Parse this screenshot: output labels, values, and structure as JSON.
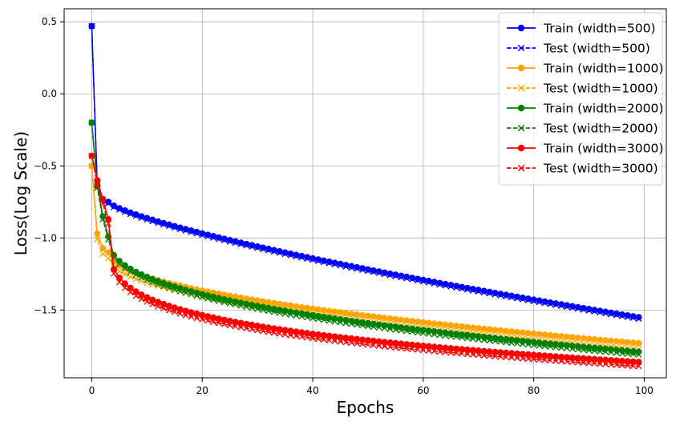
{
  "chart_data": {
    "type": "line",
    "title": "",
    "xlabel": "Epochs",
    "ylabel": "Loss(Log Scale)",
    "xlim": [
      -5,
      104
    ],
    "ylim": [
      -1.97,
      0.59
    ],
    "xticks": [
      0,
      20,
      40,
      60,
      80,
      100
    ],
    "xtick_labels": [
      "0",
      "20",
      "40",
      "60",
      "80",
      "100"
    ],
    "yticks": [
      0.5,
      0.0,
      -0.5,
      -1.0,
      -1.5
    ],
    "ytick_labels": [
      "0.5",
      "0.0",
      "−0.5",
      "−1.0",
      "−1.5"
    ],
    "grid": true,
    "legend_position": "upper-right",
    "epochs": {
      "start": 0,
      "end": 99,
      "step": 1
    },
    "series_params": [
      {
        "width": 500,
        "color": "#0000ff",
        "initial": [
          0.47,
          -0.64,
          -0.73
        ],
        "start": -0.75,
        "end": -1.55,
        "shape": 0.75,
        "test_offset": -0.01
      },
      {
        "width": 1000,
        "color": "#ffa500",
        "initial": [
          -0.5,
          -0.97,
          -1.07
        ],
        "start": -1.1,
        "end": -1.73,
        "shape": 0.5,
        "test_offset": -0.04
      },
      {
        "width": 2000,
        "color": "#008000",
        "initial": [
          -0.2,
          -0.63,
          -0.85
        ],
        "start": -0.99,
        "end": -1.79,
        "shape": 0.4,
        "test_offset": -0.02
      },
      {
        "width": 3000,
        "color": "#ff0000",
        "initial": [
          -0.43,
          -0.6,
          -0.73
        ],
        "start": -0.87,
        "end": -1.86,
        "shape": 0.23,
        "test_offset": -0.03
      }
    ],
    "series": [
      {
        "name": "Train (width=500)",
        "color": "#0000ff",
        "marker": "circle",
        "linestyle": "solid"
      },
      {
        "name": "Test (width=500)",
        "color": "#0000ff",
        "marker": "x",
        "linestyle": "dashed"
      },
      {
        "name": "Train (width=1000)",
        "color": "#ffa500",
        "marker": "circle",
        "linestyle": "solid"
      },
      {
        "name": "Test (width=1000)",
        "color": "#ffa500",
        "marker": "x",
        "linestyle": "dashed"
      },
      {
        "name": "Train (width=2000)",
        "color": "#008000",
        "marker": "circle",
        "linestyle": "solid"
      },
      {
        "name": "Test (width=2000)",
        "color": "#008000",
        "marker": "x",
        "linestyle": "dashed"
      },
      {
        "name": "Train (width=3000)",
        "color": "#ff0000",
        "marker": "circle",
        "linestyle": "solid"
      },
      {
        "name": "Test (width=3000)",
        "color": "#ff0000",
        "marker": "x",
        "linestyle": "dashed"
      }
    ]
  }
}
